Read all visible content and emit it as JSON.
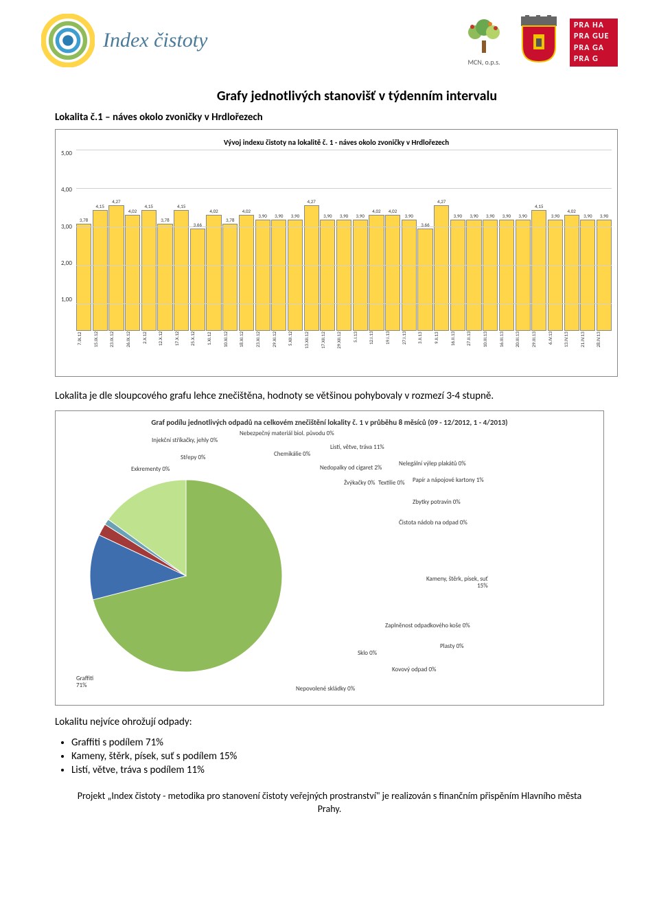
{
  "header": {
    "index_cistoty": "Index čistoty",
    "mcn": "MCN, o.p.s.",
    "prague_lines": [
      "PRA HA",
      "PRA GUE",
      "PRA GA",
      "PRA G"
    ]
  },
  "title": "Grafy jednotlivých stanovišť v týdenním intervalu",
  "subtitle": "Lokalita č.1 – náves okolo zvoničky v Hrdlořezech",
  "bar_chart": {
    "title": "Vývoj indexu čistoty na lokalitě č. 1 - náves okolo zvoničky v Hrdlořezech",
    "y_ticks": [
      "5,00",
      "4,00",
      "3,00",
      "2,00",
      "1,00"
    ],
    "ymin": 1.0,
    "ymax": 5.0,
    "bar_color": "#ffd54a",
    "bar_border": "#888888",
    "grid_color": "#d0d0d0",
    "bars": [
      {
        "x": "7.IX.12",
        "v": 3.78,
        "l": "3,78"
      },
      {
        "x": "15.IX.12",
        "v": 4.15,
        "l": "4,15"
      },
      {
        "x": "23.IX.12",
        "v": 4.27,
        "l": "4,27"
      },
      {
        "x": "26.IX.12",
        "v": 4.02,
        "l": "4,02"
      },
      {
        "x": "2.X.12",
        "v": 4.15,
        "l": "4,15"
      },
      {
        "x": "12.X.12",
        "v": 3.78,
        "l": "3,78"
      },
      {
        "x": "17.X.12",
        "v": 4.15,
        "l": "4,15"
      },
      {
        "x": "25.X.12",
        "v": 3.66,
        "l": "3,66"
      },
      {
        "x": "1.XI.12",
        "v": 4.02,
        "l": "4,02"
      },
      {
        "x": "10.XI.12",
        "v": 3.78,
        "l": "3,78"
      },
      {
        "x": "18.XI.12",
        "v": 4.02,
        "l": "4,02"
      },
      {
        "x": "23.XI.12",
        "v": 3.9,
        "l": "3,90"
      },
      {
        "x": "29.XI.12",
        "v": 3.9,
        "l": "3,90"
      },
      {
        "x": "5.XII.12",
        "v": 3.9,
        "l": "3,90"
      },
      {
        "x": "13.XII.12",
        "v": 4.27,
        "l": "4,27"
      },
      {
        "x": "17.XII.12",
        "v": 3.9,
        "l": "3,90"
      },
      {
        "x": "29.XII.12",
        "v": 3.9,
        "l": "3,90"
      },
      {
        "x": "5.I.13",
        "v": 3.9,
        "l": "3,90"
      },
      {
        "x": "12.I.13",
        "v": 4.02,
        "l": "4,02"
      },
      {
        "x": "19.I.13",
        "v": 4.02,
        "l": "4,02"
      },
      {
        "x": "27.I.13",
        "v": 3.9,
        "l": "3,90"
      },
      {
        "x": "3.II.13",
        "v": 3.66,
        "l": "3,66"
      },
      {
        "x": "9.II.13",
        "v": 4.27,
        "l": "4,27"
      },
      {
        "x": "16.II.13",
        "v": 3.9,
        "l": "3,90"
      },
      {
        "x": "27.II.13",
        "v": 3.9,
        "l": "3,90"
      },
      {
        "x": "10.III.13",
        "v": 3.9,
        "l": "3,90"
      },
      {
        "x": "16.III.13",
        "v": 3.9,
        "l": "3,90"
      },
      {
        "x": "20.III.13",
        "v": 3.9,
        "l": "3,90"
      },
      {
        "x": "29.III.13",
        "v": 4.15,
        "l": "4,15"
      },
      {
        "x": "6.IV.13",
        "v": 3.9,
        "l": "3,90"
      },
      {
        "x": "13.IV.13",
        "v": 4.02,
        "l": "4,02"
      },
      {
        "x": "21.IV.13",
        "v": 3.9,
        "l": "3,90"
      },
      {
        "x": "28.IV.13",
        "v": 3.9,
        "l": "3,90"
      }
    ]
  },
  "paragraph1": "Lokalita je dle sloupcového grafu lehce znečištěna, hodnoty se většinou pohybovaly v rozmezí 3-4 stupně.",
  "pie_chart": {
    "title": "Graf podílu jednotlivých odpadů na celkovém znečištění lokality č. 1 v průběhu 8 měsíců (09 - 12/2012, 1 - 4/2013)",
    "slices": [
      {
        "label": "Graffiti",
        "pct": 71,
        "color": "#8fbb5a"
      },
      {
        "label": "Listí, větve, tráva",
        "pct": 11,
        "color": "#3e6eae"
      },
      {
        "label": "Nedopalky od cigaret",
        "pct": 2,
        "color": "#a33a3a"
      },
      {
        "label": "Papír a nápojové kartony",
        "pct": 1,
        "color": "#6aa1b5"
      },
      {
        "label": "Kameny, štěrk, písek, suť",
        "pct": 15,
        "color": "#bfe28f"
      }
    ],
    "zero_labels_top": [
      "Injekční stříkačky, jehly 0%",
      "Nebezpečný materiál biol. původu 0%",
      "Střepy 0%",
      "Chemikálie 0%",
      "Exkrementy 0%"
    ],
    "right_labels": [
      {
        "t": "Listí, větve, tráva",
        "p": "11%"
      },
      {
        "t": "Nedopalky od cigaret",
        "p": "2%"
      },
      {
        "t": "Nelegální výlep plakátů",
        "p": "0%"
      },
      {
        "t": "Žvýkačky",
        "p": "0%"
      },
      {
        "t": "Textilie",
        "p": "0%"
      },
      {
        "t": "Papír a nápojové kartony",
        "p": "1%"
      },
      {
        "t": "Zbytky potravin",
        "p": "0%"
      },
      {
        "t": "Čistota nádob na odpad",
        "p": "0%"
      },
      {
        "t": "Kameny, štěrk, písek, suť",
        "p": "15%"
      },
      {
        "t": "Zaplněnost odpadkového koše",
        "p": "0%"
      },
      {
        "t": "Plasty",
        "p": "0%"
      },
      {
        "t": "Sklo",
        "p": "0%"
      },
      {
        "t": "Kovový odpad",
        "p": "0%"
      },
      {
        "t": "Nepovolené skládky",
        "p": "0%"
      }
    ],
    "graffiti_label": {
      "t": "Graffiti",
      "p": "71%"
    }
  },
  "paragraph2_lead": "Lokalitu nejvíce ohrožují odpady:",
  "bullets": [
    "Graffiti s podílem 71%",
    "Kameny, štěrk, písek, suť s podílem 15%",
    "Listí, větve, tráva s podílem 11%"
  ],
  "footer": "Projekt „Index čistoty - metodika pro stanovení čistoty veřejných prostranství\" je realizován s finančním přispěním Hlavního města Prahy."
}
